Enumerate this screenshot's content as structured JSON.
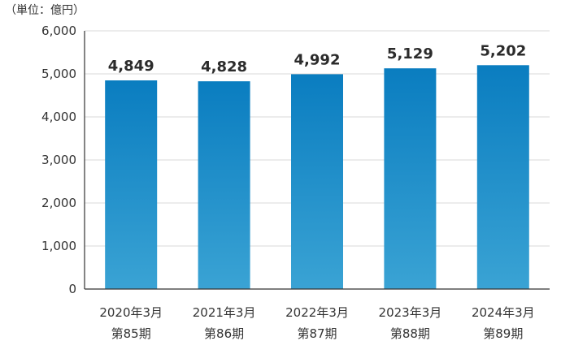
{
  "chart_data": {
    "type": "bar",
    "unit_label": "（単位：億円）",
    "categories": [
      {
        "year": "2020年3月",
        "period": "第85期"
      },
      {
        "year": "2021年3月",
        "period": "第86期"
      },
      {
        "year": "2022年3月",
        "period": "第87期"
      },
      {
        "year": "2023年3月",
        "period": "第88期"
      },
      {
        "year": "2024年3月",
        "period": "第89期"
      }
    ],
    "values": [
      4849,
      4828,
      4992,
      5129,
      5202
    ],
    "value_labels": [
      "4,849",
      "4,828",
      "4,992",
      "5,129",
      "5,202"
    ],
    "ylim": [
      0,
      6000
    ],
    "yticks": [
      0,
      1000,
      2000,
      3000,
      4000,
      5000,
      6000
    ],
    "ytick_labels": [
      "0",
      "1,000",
      "2,000",
      "3,000",
      "4,000",
      "5,000",
      "6,000"
    ],
    "grid": true,
    "colors": {
      "bar_top": "#0a7dc0",
      "bar_bottom": "#3aa3d4",
      "grid": "#d9d9d9",
      "axis": "#333333"
    }
  }
}
